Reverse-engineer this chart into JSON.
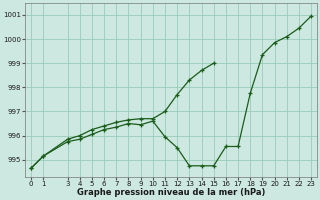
{
  "title": "Graphe pression niveau de la mer (hPa)",
  "background_color": "#cce8e0",
  "grid_color": "#99ccbb",
  "line_color": "#1a5c1a",
  "marker_color": "#1a5c1a",
  "xlim": [
    -0.5,
    23.5
  ],
  "ylim": [
    994.3,
    1001.5
  ],
  "yticks": [
    995,
    996,
    997,
    998,
    999,
    1000,
    1001
  ],
  "xticks": [
    0,
    1,
    3,
    4,
    5,
    6,
    7,
    8,
    9,
    10,
    11,
    12,
    13,
    14,
    15,
    16,
    17,
    18,
    19,
    20,
    21,
    22,
    23
  ],
  "series1_x": [
    0,
    1,
    3,
    4,
    5,
    6,
    7,
    8,
    9,
    10,
    11,
    12,
    13,
    14,
    15,
    16,
    17,
    18,
    19,
    20,
    21,
    22,
    23
  ],
  "series1_y": [
    994.65,
    995.15,
    995.75,
    995.85,
    996.05,
    996.25,
    996.35,
    996.5,
    996.45,
    996.6,
    995.95,
    995.5,
    994.75,
    994.75,
    994.75,
    995.55,
    995.55,
    997.75,
    999.35,
    999.85,
    1000.1,
    1000.45,
    1000.95
  ],
  "series2_x": [
    0,
    1,
    3,
    4,
    5,
    6,
    7,
    8,
    9,
    10,
    11,
    12,
    13,
    14,
    15
  ],
  "series2_y": [
    994.65,
    995.15,
    995.85,
    996.0,
    996.25,
    996.4,
    996.55,
    996.65,
    996.7,
    996.7,
    997.0,
    997.7,
    998.3,
    998.7,
    999.0
  ]
}
